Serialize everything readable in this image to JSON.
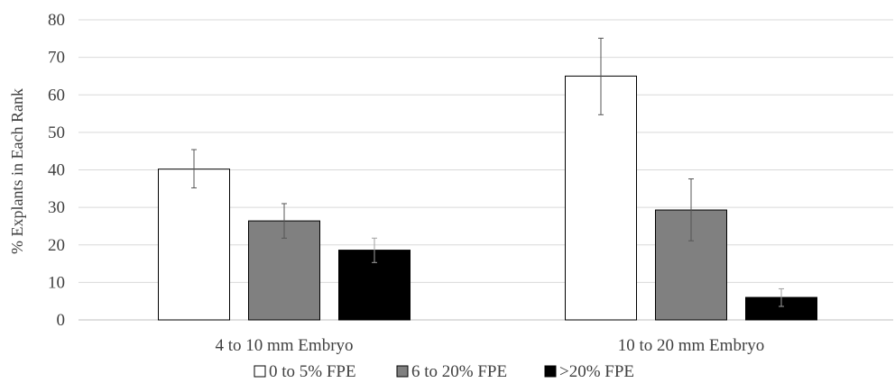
{
  "chart_data": {
    "type": "bar",
    "title": "",
    "xlabel": "",
    "ylabel": "% Explants in Each Rank",
    "ylim": [
      0,
      80
    ],
    "yticks": [
      0,
      10,
      20,
      30,
      40,
      50,
      60,
      70,
      80
    ],
    "grid": true,
    "legend_position": "bottom",
    "categories": [
      "4 to 10 mm Embryo",
      "10 to 20 mm Embryo"
    ],
    "series": [
      {
        "name": "0 to 5% FPE",
        "color": "#ffffff",
        "values": [
          40.2,
          65.0
        ],
        "error_low": [
          35.2,
          54.7
        ],
        "error_high": [
          45.4,
          75.1
        ]
      },
      {
        "name": "6 to 20% FPE",
        "color": "#808080",
        "values": [
          26.4,
          29.3
        ],
        "error_low": [
          21.8,
          21.1
        ],
        "error_high": [
          31.0,
          37.6
        ]
      },
      {
        "name": ">20% FPE",
        "color": "#000000",
        "values": [
          18.6,
          6.0
        ],
        "error_low": [
          15.3,
          3.6
        ],
        "error_high": [
          21.8,
          8.3
        ]
      }
    ]
  }
}
